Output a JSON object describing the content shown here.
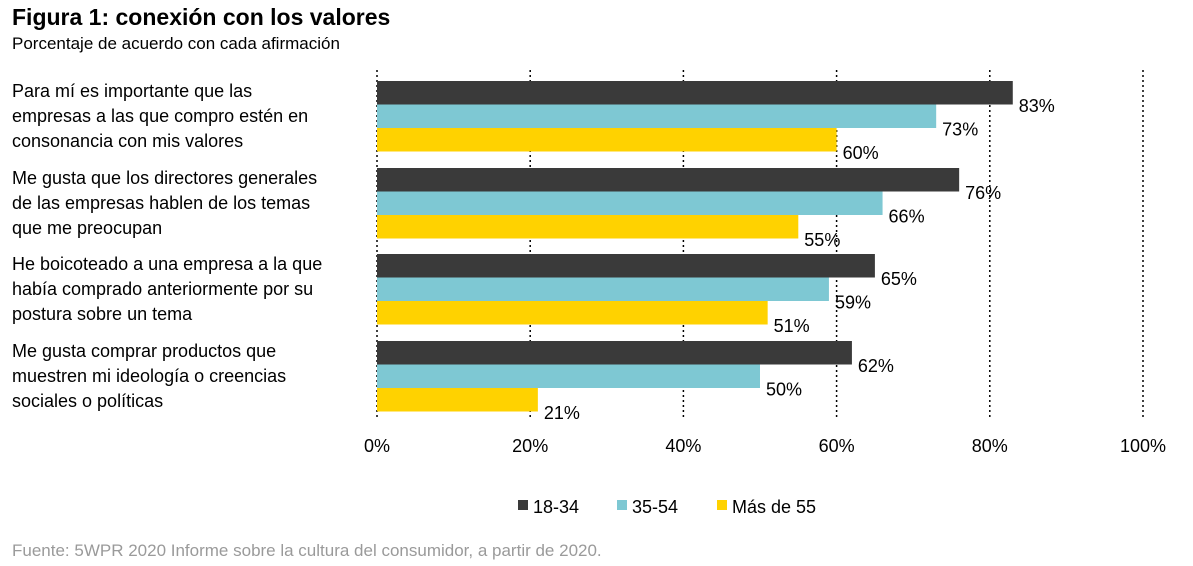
{
  "header": {
    "title": "Figura 1: conexión con los valores",
    "subtitle": "Porcentaje de acuerdo con cada afirmación"
  },
  "chart_data": {
    "type": "bar",
    "orientation": "horizontal",
    "categories": [
      [
        "Para mí es importante que las",
        "empresas a las que compro estén en",
        "consonancia con mis valores"
      ],
      [
        "Me gusta que los directores generales",
        "de las empresas hablen de los temas",
        "que me preocupan"
      ],
      [
        "He boicoteado a una empresa a la que",
        "había comprado anteriormente por su",
        "postura sobre un tema"
      ],
      [
        "Me gusta comprar productos que",
        "muestren mi ideología o creencias",
        "sociales o políticas"
      ]
    ],
    "series": [
      {
        "name": "18-34",
        "color": "#3a3a3a",
        "values": [
          83,
          76,
          65,
          62
        ]
      },
      {
        "name": "35-54",
        "color": "#7ec8d3",
        "values": [
          73,
          66,
          59,
          50
        ]
      },
      {
        "name": "Más de 55",
        "color": "#ffd200",
        "values": [
          60,
          55,
          51,
          21
        ]
      }
    ],
    "xlim": [
      0,
      100
    ],
    "xticks": [
      "0%",
      "20%",
      "40%",
      "60%",
      "80%",
      "100%"
    ],
    "value_suffix": "%",
    "grid": "vertical dotted",
    "legend_position": "bottom"
  },
  "footer": {
    "source": "Fuente: 5WPR 2020 Informe sobre la cultura del consumidor, a partir de 2020."
  }
}
